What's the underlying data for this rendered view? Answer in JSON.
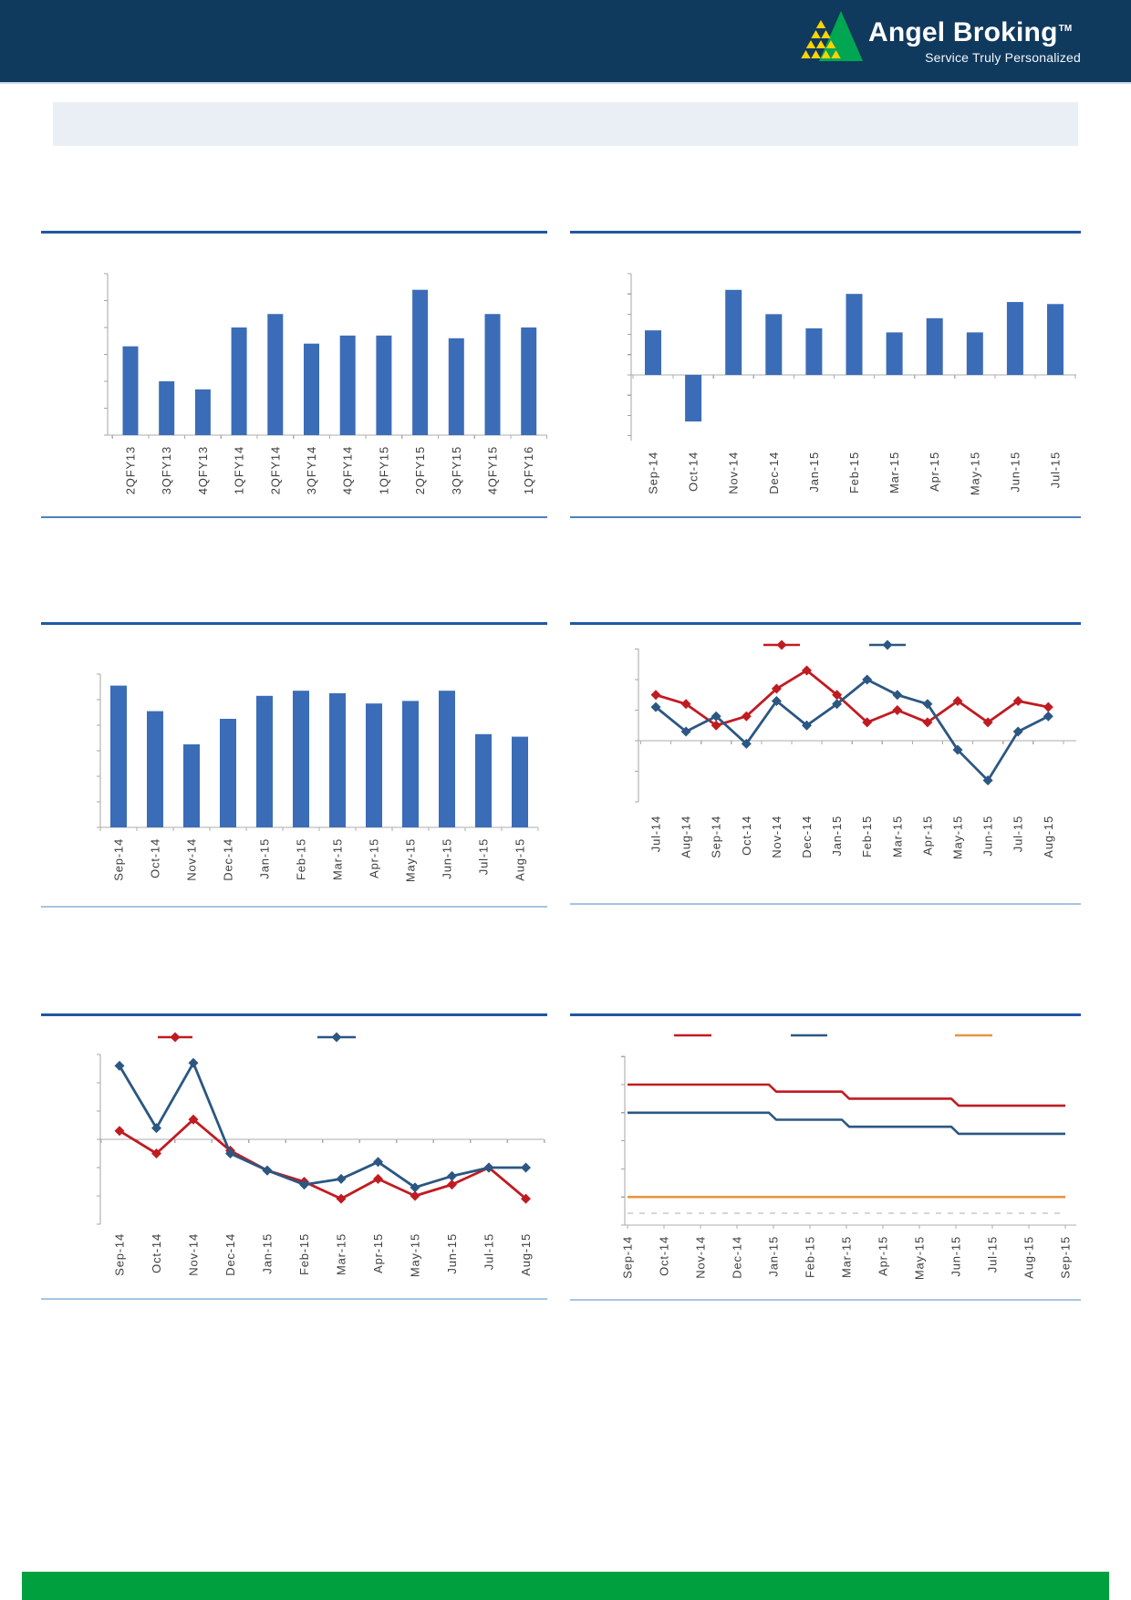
{
  "brand": {
    "name": "Angel Broking",
    "tm": "TM",
    "tagline": "Service Truly Personalized"
  },
  "colors": {
    "header_bg": "#10395E",
    "banner_bg": "#E9EFF4",
    "rule_accent": "#2157A5",
    "rule_steel": "#4F81BD",
    "rule_light": "#A7C4E2",
    "bar": "#3B6CB7",
    "series_red": "#C11B22",
    "series_blue": "#2B5782",
    "series_orange": "#E79440",
    "axis": "#A6A6A6",
    "tick_label": "#3F3F3F",
    "footer_green": "#00A03E",
    "logo_green": "#00A651",
    "logo_yellow": "#FFD200"
  },
  "chart_data": [
    {
      "id": "quarterly-bars",
      "type": "bar",
      "categories": [
        "2QFY13",
        "3QFY13",
        "4QFY13",
        "1QFY14",
        "2QFY14",
        "3QFY14",
        "4QFY14",
        "1QFY15",
        "2QFY15",
        "3QFY15",
        "4QFY15",
        "1QFY16"
      ],
      "values": [
        3.3,
        2.0,
        1.7,
        4.0,
        4.5,
        3.4,
        3.7,
        3.7,
        5.4,
        3.6,
        4.5,
        4.0
      ],
      "ylim": [
        0,
        6
      ],
      "ytick_step": 1,
      "grid": false,
      "axis_tick_labels_visible": false,
      "legend_position": "none"
    },
    {
      "id": "monthly-bars-pos-neg",
      "type": "bar",
      "categories": [
        "Sep-14",
        "Oct-14",
        "Nov-14",
        "Dec-14",
        "Jan-15",
        "Feb-15",
        "Mar-15",
        "Apr-15",
        "May-15",
        "Jun-15",
        "Jul-15"
      ],
      "values": [
        2.2,
        -2.3,
        4.2,
        3.0,
        2.3,
        4.0,
        2.1,
        2.8,
        2.1,
        3.6,
        3.5
      ],
      "ylim": [
        -3,
        5
      ],
      "ytick_step": 1,
      "grid": false,
      "axis_tick_labels_visible": false,
      "legend_position": "none"
    },
    {
      "id": "monthly-bars",
      "type": "bar",
      "categories": [
        "Sep-14",
        "Oct-14",
        "Nov-14",
        "Dec-14",
        "Jan-15",
        "Feb-15",
        "Mar-15",
        "Apr-15",
        "May-15",
        "Jun-15",
        "Jul-15",
        "Aug-15"
      ],
      "values": [
        11.1,
        9.1,
        6.5,
        8.5,
        10.3,
        10.7,
        10.5,
        9.7,
        9.9,
        10.7,
        7.3,
        7.1
      ],
      "ylim": [
        0,
        12
      ],
      "ytick_step": 2,
      "grid": false,
      "axis_tick_labels_visible": false,
      "legend_position": "none"
    },
    {
      "id": "two-series-lines-a",
      "type": "line",
      "categories": [
        "Jul-14",
        "Aug-14",
        "Sep-14",
        "Oct-14",
        "Nov-14",
        "Dec-14",
        "Jan-15",
        "Feb-15",
        "Mar-15",
        "Apr-15",
        "May-15",
        "Jun-15",
        "Jul-15",
        "Aug-15"
      ],
      "series": [
        {
          "name": "",
          "color": "series_red",
          "values": [
            1.5,
            1.2,
            0.5,
            0.8,
            1.7,
            2.3,
            1.5,
            0.6,
            1.0,
            0.6,
            1.3,
            0.6,
            1.3,
            1.1
          ]
        },
        {
          "name": "",
          "color": "series_blue",
          "values": [
            1.1,
            0.3,
            0.8,
            -0.1,
            1.3,
            0.5,
            1.2,
            2.0,
            1.5,
            1.2,
            -0.3,
            -1.3,
            0.3,
            0.8
          ]
        }
      ],
      "ylim": [
        -2,
        3
      ],
      "ytick_step": 1,
      "grid": false,
      "axis_tick_labels_visible": false,
      "legend_position": "top"
    },
    {
      "id": "two-series-lines-b",
      "type": "line",
      "categories": [
        "Sep-14",
        "Oct-14",
        "Nov-14",
        "Dec-14",
        "Jan-15",
        "Feb-15",
        "Mar-15",
        "Apr-15",
        "May-15",
        "Jun-15",
        "Jul-15",
        "Aug-15"
      ],
      "series": [
        {
          "name": "",
          "color": "series_red",
          "values": [
            0.3,
            -0.5,
            0.7,
            -0.4,
            -1.1,
            -1.5,
            -2.1,
            -1.4,
            -2.0,
            -1.6,
            -1.0,
            -2.1
          ]
        },
        {
          "name": "",
          "color": "series_blue",
          "values": [
            2.6,
            0.4,
            2.7,
            -0.5,
            -1.1,
            -1.6,
            -1.4,
            -0.8,
            -1.7,
            -1.3,
            -1.0,
            -1.0
          ]
        }
      ],
      "ylim": [
        -3,
        3
      ],
      "ytick_step": 1,
      "grid": false,
      "axis_tick_labels_visible": false,
      "legend_position": "top"
    },
    {
      "id": "policy-rate-steps",
      "type": "step-line",
      "categories": [
        "Sep-14",
        "Oct-14",
        "Nov-14",
        "Dec-14",
        "Jan-15",
        "Feb-15",
        "Mar-15",
        "Apr-15",
        "May-15",
        "Jun-15",
        "Jul-15",
        "Aug-15",
        "Sep-15"
      ],
      "series": [
        {
          "name": "",
          "color": "series_red",
          "steps": [
            {
              "from": "Sep-14",
              "value": 8.0
            },
            {
              "from": "Jan-15",
              "value": 7.75
            },
            {
              "from": "Mar-15",
              "value": 7.5
            },
            {
              "from": "Jun-15",
              "value": 7.25
            }
          ]
        },
        {
          "name": "",
          "color": "series_blue",
          "steps": [
            {
              "from": "Sep-14",
              "value": 7.0
            },
            {
              "from": "Jan-15",
              "value": 6.75
            },
            {
              "from": "Mar-15",
              "value": 6.5
            },
            {
              "from": "Jun-15",
              "value": 6.25
            }
          ]
        },
        {
          "name": "",
          "color": "series_orange",
          "steps": [
            {
              "from": "Sep-14",
              "value": 4.0
            }
          ]
        }
      ],
      "ylim": [
        3,
        9
      ],
      "ytick_step": 1,
      "grid": false,
      "axis_tick_labels_visible": false,
      "legend_position": "top"
    }
  ]
}
